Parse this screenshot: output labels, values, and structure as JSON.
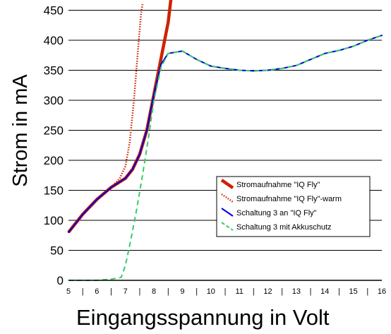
{
  "chart_data": {
    "type": "line",
    "title": "",
    "xlabel": "Eingangsspannung in Volt",
    "ylabel": "Strom in mA",
    "xlim": [
      5,
      16
    ],
    "ylim": [
      0,
      460
    ],
    "xticks": [
      "5",
      "6",
      "7",
      "8",
      "9",
      "10",
      "11",
      "12",
      "13",
      "14",
      "15",
      "16"
    ],
    "yticks": [
      "0",
      "50",
      "100",
      "150",
      "200",
      "250",
      "300",
      "350",
      "400",
      "450"
    ],
    "ytick_values": [
      0,
      50,
      100,
      150,
      200,
      250,
      300,
      350,
      400,
      450
    ],
    "grid": "horizontal",
    "legend_position": "right",
    "series": [
      {
        "name": "Stromaufnahme \"IQ Fly\"",
        "color": "#cc2200",
        "style": "solid-thick",
        "x": [
          5,
          5.5,
          6,
          6.5,
          7,
          7.25,
          7.5,
          7.75,
          8,
          8.25,
          8.5,
          8.6
        ],
        "y": [
          80,
          110,
          135,
          155,
          170,
          185,
          210,
          250,
          310,
          370,
          430,
          470
        ]
      },
      {
        "name": "Stromaufnahme \"IQ Fly\"-warm",
        "color": "#cc2200",
        "style": "dotted",
        "x": [
          6.5,
          6.8,
          7,
          7.15,
          7.3,
          7.45,
          7.55,
          7.6
        ],
        "y": [
          155,
          170,
          190,
          230,
          300,
          390,
          445,
          460
        ]
      },
      {
        "name": "Schaltung 3 an \"IQ Fly\"",
        "color": "#0000dd",
        "style": "solid",
        "x": [
          5,
          5.5,
          6,
          6.5,
          7,
          7.25,
          7.5,
          7.75,
          8,
          8.25,
          8.5,
          9,
          9.5,
          10,
          10.5,
          11,
          11.5,
          12,
          12.5,
          13,
          13.5,
          14,
          14.5,
          15,
          15.5,
          16
        ],
        "y": [
          80,
          110,
          135,
          155,
          170,
          185,
          210,
          250,
          310,
          360,
          378,
          382,
          368,
          357,
          353,
          350,
          349,
          350,
          353,
          358,
          368,
          378,
          383,
          390,
          400,
          408
        ]
      },
      {
        "name": "Schaltung 3 mit Akkuschutz",
        "color": "#33cc66",
        "style": "dashed",
        "x": [
          5,
          5.5,
          6,
          6.5,
          6.85,
          7,
          7.2,
          7.4,
          7.6,
          7.8,
          8,
          8.25,
          8.5,
          9,
          9.5,
          10,
          10.5,
          11,
          11.5,
          12,
          12.5,
          13,
          13.5,
          14,
          14.5,
          15,
          15.5,
          16
        ],
        "y": [
          0,
          0,
          0,
          2,
          5,
          25,
          70,
          120,
          175,
          235,
          300,
          355,
          378,
          382,
          368,
          357,
          353,
          350,
          349,
          350,
          353,
          358,
          368,
          378,
          383,
          390,
          400,
          408
        ]
      }
    ]
  }
}
